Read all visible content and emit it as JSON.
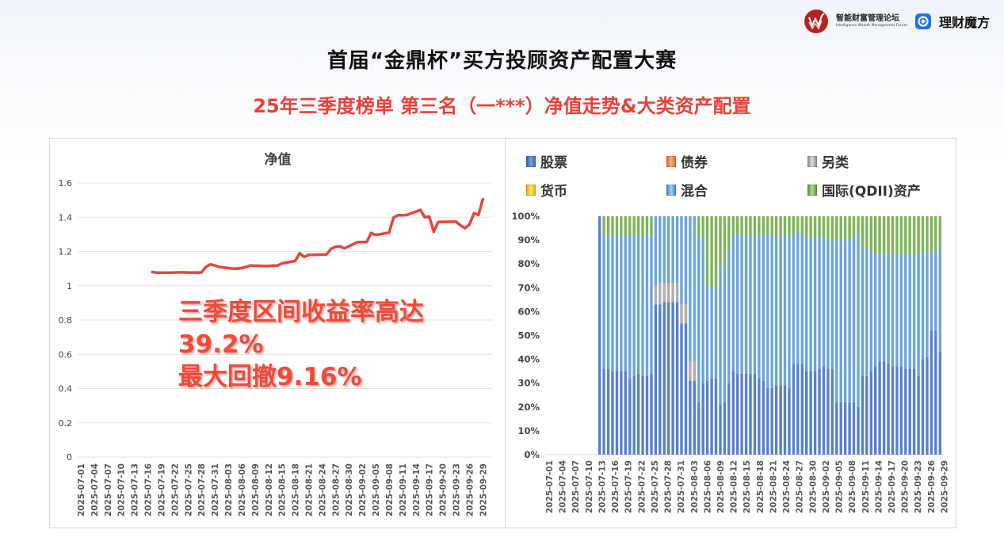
{
  "header": {
    "forum_name_cn": "智能财富管理论坛",
    "forum_name_en": "Intelligence Wealth Management Forum",
    "partner_name": "理财魔方",
    "title": "首届“金鼎杯”买方投顾资产配置大赛",
    "subtitle": "25年三季度榜单 第三名（一***）净值走势&大类资产配置"
  },
  "callout": {
    "line1": "三季度区间收益率高达",
    "line2": "39.2%",
    "line3": "最大回撤9.16%"
  },
  "colors": {
    "title_red": "#e8413a",
    "line_red": "#e8453c",
    "stock": "#4472c4",
    "bond": "#ed7d31",
    "alt": "#a5a5a5",
    "cash": "#ffc000",
    "mixed": "#5b9bd5",
    "qdii": "#70ad47"
  },
  "chart_data": [
    {
      "type": "line",
      "title": "净值",
      "xlabel": "",
      "ylabel": "",
      "ylim": [
        0,
        1.6
      ],
      "yticks": [
        "0",
        "0.2",
        "0.4",
        "0.6",
        "0.8",
        "1",
        "1.2",
        "1.4",
        "1.6"
      ],
      "grid": true,
      "xtick_labels": [
        "2025-07-01",
        "2025-07-04",
        "2025-07-07",
        "2025-07-10",
        "2025-07-13",
        "2025-07-16",
        "2025-07-19",
        "2025-07-22",
        "2025-07-25",
        "2025-07-28",
        "2025-07-31",
        "2025-08-03",
        "2025-08-06",
        "2025-08-09",
        "2025-08-12",
        "2025-08-15",
        "2025-08-18",
        "2025-08-21",
        "2025-08-24",
        "2025-08-27",
        "2025-08-30",
        "2025-09-02",
        "2025-09-05",
        "2025-09-08",
        "2025-09-11",
        "2025-09-14",
        "2025-09-17",
        "2025-09-20",
        "2025-09-23",
        "2025-09-26",
        "2025-09-29"
      ],
      "series": [
        {
          "name": "净值",
          "color": "#e8453c",
          "points": [
            [
              "2025-07-17",
              1.08
            ],
            [
              "2025-07-18",
              1.076
            ],
            [
              "2025-07-21",
              1.076
            ],
            [
              "2025-07-22",
              1.077
            ],
            [
              "2025-07-23",
              1.078
            ],
            [
              "2025-07-24",
              1.078
            ],
            [
              "2025-07-25",
              1.077
            ],
            [
              "2025-07-28",
              1.077
            ],
            [
              "2025-07-29",
              1.11
            ],
            [
              "2025-07-30",
              1.125
            ],
            [
              "2025-07-31",
              1.118
            ],
            [
              "2025-08-01",
              1.11
            ],
            [
              "2025-08-04",
              1.1
            ],
            [
              "2025-08-05",
              1.1
            ],
            [
              "2025-08-06",
              1.103
            ],
            [
              "2025-08-07",
              1.11
            ],
            [
              "2025-08-08",
              1.118
            ],
            [
              "2025-08-11",
              1.115
            ],
            [
              "2025-08-12",
              1.115
            ],
            [
              "2025-08-13",
              1.117
            ],
            [
              "2025-08-14",
              1.117
            ],
            [
              "2025-08-15",
              1.13
            ],
            [
              "2025-08-18",
              1.145
            ],
            [
              "2025-08-19",
              1.19
            ],
            [
              "2025-08-20",
              1.168
            ],
            [
              "2025-08-21",
              1.18
            ],
            [
              "2025-08-22",
              1.18
            ],
            [
              "2025-08-25",
              1.183
            ],
            [
              "2025-08-26",
              1.215
            ],
            [
              "2025-08-27",
              1.228
            ],
            [
              "2025-08-28",
              1.23
            ],
            [
              "2025-08-29",
              1.218
            ],
            [
              "2025-09-01",
              1.255
            ],
            [
              "2025-09-02",
              1.255
            ],
            [
              "2025-09-03",
              1.256
            ],
            [
              "2025-09-04",
              1.308
            ],
            [
              "2025-09-05",
              1.296
            ],
            [
              "2025-09-08",
              1.31
            ],
            [
              "2025-09-09",
              1.398
            ],
            [
              "2025-09-10",
              1.412
            ],
            [
              "2025-09-11",
              1.412
            ],
            [
              "2025-09-12",
              1.413
            ],
            [
              "2025-09-15",
              1.443
            ],
            [
              "2025-09-16",
              1.4
            ],
            [
              "2025-09-17",
              1.404
            ],
            [
              "2025-09-18",
              1.315
            ],
            [
              "2025-09-19",
              1.372
            ],
            [
              "2025-09-22",
              1.374
            ],
            [
              "2025-09-23",
              1.374
            ],
            [
              "2025-09-24",
              1.352
            ],
            [
              "2025-09-25",
              1.336
            ],
            [
              "2025-09-26",
              1.358
            ],
            [
              "2025-09-27",
              1.424
            ],
            [
              "2025-09-28",
              1.413
            ],
            [
              "2025-09-29",
              1.505
            ]
          ],
          "note": "Line spans 2025-07-17 to 2025-09-30, rising from ~1.08 to ~1.51"
        }
      ]
    },
    {
      "type": "bar",
      "stacked": true,
      "normalized": true,
      "title": "",
      "ylim": [
        0,
        100
      ],
      "yticks": [
        "0%",
        "10%",
        "20%",
        "30%",
        "40%",
        "50%",
        "60%",
        "70%",
        "80%",
        "90%",
        "100%"
      ],
      "legend": [
        "股票",
        "债券",
        "另类",
        "货币",
        "混合",
        "国际(QDII)资产"
      ],
      "legend_position": "top",
      "xtick_labels": [
        "2025-07-01",
        "2025-07-04",
        "2025-07-07",
        "2025-07-10",
        "2025-07-13",
        "2025-07-16",
        "2025-07-19",
        "2025-07-22",
        "2025-07-25",
        "2025-07-28",
        "2025-07-31",
        "2025-08-03",
        "2025-08-06",
        "2025-08-09",
        "2025-08-12",
        "2025-08-15",
        "2025-08-18",
        "2025-08-21",
        "2025-08-24",
        "2025-08-27",
        "2025-08-30",
        "2025-09-02",
        "2025-09-05",
        "2025-09-08",
        "2025-09-11",
        "2025-09-14",
        "2025-09-17",
        "2025-09-20",
        "2025-09-23",
        "2025-09-26",
        "2025-09-29"
      ],
      "bar_start": "2025-07-13",
      "bars": [
        {
          "股票": 100,
          "另类": 0,
          "混合": 0,
          "国际(QDII)资产": 0
        },
        {
          "股票": 36,
          "另类": 0,
          "混合": 56,
          "国际(QDII)资产": 8
        },
        {
          "股票": 36,
          "另类": 0,
          "混合": 56,
          "国际(QDII)资产": 8
        },
        {
          "股票": 35,
          "另类": 0,
          "混合": 57,
          "国际(QDII)资产": 8
        },
        {
          "股票": 35,
          "另类": 0,
          "混合": 57,
          "国际(QDII)资产": 8
        },
        {
          "股票": 35,
          "另类": 0,
          "混合": 57,
          "国际(QDII)资产": 8
        },
        {
          "股票": 35,
          "另类": 0,
          "混合": 57,
          "国际(QDII)资产": 8
        },
        {
          "股票": 32,
          "另类": 0,
          "混合": 60,
          "国际(QDII)资产": 8
        },
        {
          "股票": 33,
          "另类": 0,
          "混合": 59,
          "国际(QDII)资产": 8
        },
        {
          "股票": 34,
          "另类": 0,
          "混合": 58,
          "国际(QDII)资产": 8
        },
        {
          "股票": 33,
          "另类": 0,
          "混合": 59,
          "国际(QDII)资产": 8
        },
        {
          "股票": 33,
          "另类": 0,
          "混合": 59,
          "国际(QDII)资产": 8
        },
        {
          "股票": 34,
          "另类": 0,
          "混合": 58,
          "国际(QDII)资产": 8
        },
        {
          "股票": 63,
          "另类": 8,
          "混合": 29,
          "国际(QDII)资产": 0
        },
        {
          "股票": 63,
          "另类": 9,
          "混合": 28,
          "国际(QDII)资产": 0
        },
        {
          "股票": 64,
          "另类": 8,
          "混合": 28,
          "国际(QDII)资产": 0
        },
        {
          "股票": 64,
          "另类": 8,
          "混合": 28,
          "国际(QDII)资产": 0
        },
        {
          "股票": 64,
          "另类": 8,
          "混合": 28,
          "国际(QDII)资产": 0
        },
        {
          "股票": 64,
          "另类": 8,
          "混合": 28,
          "国际(QDII)资产": 0
        },
        {
          "股票": 55,
          "另类": 8,
          "混合": 37,
          "国际(QDII)资产": 0
        },
        {
          "股票": 55,
          "另类": 8,
          "混合": 37,
          "国际(QDII)资产": 0
        },
        {
          "股票": 31,
          "另类": 8,
          "混合": 61,
          "国际(QDII)资产": 0
        },
        {
          "股票": 31,
          "另类": 8,
          "混合": 61,
          "国际(QDII)资产": 0
        },
        {
          "股票": 22,
          "另类": 0,
          "混合": 69,
          "国际(QDII)资产": 9
        },
        {
          "股票": 30,
          "另类": 0,
          "混合": 61,
          "国际(QDII)资产": 9
        },
        {
          "股票": 31,
          "另类": 0,
          "混合": 40,
          "国际(QDII)资产": 29
        },
        {
          "股票": 32,
          "另类": 0,
          "混合": 38,
          "国际(QDII)资产": 30
        },
        {
          "股票": 32,
          "另类": 0,
          "混合": 38,
          "国际(QDII)资产": 30
        },
        {
          "股票": 21,
          "另类": 0,
          "混合": 59,
          "国际(QDII)资产": 20
        },
        {
          "股票": 22,
          "另类": 0,
          "混合": 57,
          "国际(QDII)资产": 21
        },
        {
          "股票": 30,
          "另类": 0,
          "混合": 56,
          "国际(QDII)资产": 14
        },
        {
          "股票": 35,
          "另类": 0,
          "混合": 57,
          "国际(QDII)资产": 8
        },
        {
          "股票": 34,
          "另类": 0,
          "混合": 58,
          "国际(QDII)资产": 8
        },
        {
          "股票": 34,
          "另类": 0,
          "混合": 58,
          "国际(QDII)资产": 8
        },
        {
          "股票": 34,
          "另类": 0,
          "混合": 58,
          "国际(QDII)资产": 8
        },
        {
          "股票": 34,
          "另类": 0,
          "混合": 58,
          "国际(QDII)资产": 8
        },
        {
          "股票": 34,
          "另类": 0,
          "混合": 58,
          "国际(QDII)资产": 8
        },
        {
          "股票": 32,
          "另类": 0,
          "混合": 60,
          "国际(QDII)资产": 8
        },
        {
          "股票": 31,
          "另类": 0,
          "混合": 61,
          "国际(QDII)资产": 8
        },
        {
          "股票": 28,
          "另类": 0,
          "混合": 64,
          "国际(QDII)资产": 8
        },
        {
          "股票": 28,
          "另类": 0,
          "混合": 64,
          "国际(QDII)资产": 8
        },
        {
          "股票": 29,
          "另类": 0,
          "混合": 63,
          "国际(QDII)资产": 8
        },
        {
          "股票": 29,
          "另类": 0,
          "混合": 63,
          "国际(QDII)资产": 8
        },
        {
          "股票": 29,
          "另类": 0,
          "混合": 63,
          "国际(QDII)资产": 8
        },
        {
          "股票": 28,
          "另类": 0,
          "混合": 63,
          "国际(QDII)资产": 9
        },
        {
          "股票": 38,
          "另类": 0,
          "混合": 55,
          "国际(QDII)资产": 7
        },
        {
          "股票": 38,
          "另类": 0,
          "混合": 55,
          "国际(QDII)资产": 7
        },
        {
          "股票": 38,
          "另类": 0,
          "混合": 55,
          "国际(QDII)资产": 7
        },
        {
          "股票": 35,
          "另类": 0,
          "混合": 56,
          "国际(QDII)资产": 9
        },
        {
          "股票": 35,
          "另类": 0,
          "混合": 56,
          "国际(QDII)资产": 9
        },
        {
          "股票": 35,
          "另类": 0,
          "混合": 56,
          "国际(QDII)资产": 9
        },
        {
          "股票": 36,
          "另类": 0,
          "混合": 55,
          "国际(QDII)资产": 9
        },
        {
          "股票": 37,
          "另类": 0,
          "混合": 54,
          "国际(QDII)资产": 9
        },
        {
          "股票": 36,
          "另类": 0,
          "混合": 54,
          "国际(QDII)资产": 10
        },
        {
          "股票": 36,
          "另类": 0,
          "混合": 54,
          "国际(QDII)资产": 10
        },
        {
          "股票": 22,
          "另类": 0,
          "混合": 68,
          "国际(QDII)资产": 10
        },
        {
          "股票": 22,
          "另类": 0,
          "混合": 68,
          "国际(QDII)资产": 10
        },
        {
          "股票": 22,
          "另类": 0,
          "混合": 68,
          "国际(QDII)资产": 10
        },
        {
          "股票": 22,
          "另类": 0,
          "混合": 68,
          "国际(QDII)资产": 10
        },
        {
          "股票": 22,
          "另类": 0,
          "混合": 69,
          "国际(QDII)资产": 9
        },
        {
          "股票": 20,
          "另类": 0,
          "混合": 72,
          "国际(QDII)资产": 8
        },
        {
          "股票": 33,
          "另类": 0,
          "混合": 54,
          "国际(QDII)资产": 13
        },
        {
          "股票": 33,
          "另类": 0,
          "混合": 54,
          "国际(QDII)资产": 13
        },
        {
          "股票": 35,
          "另类": 0,
          "混合": 50,
          "国际(QDII)资产": 15
        },
        {
          "股票": 37,
          "另类": 0,
          "混合": 47,
          "国际(QDII)资产": 16
        },
        {
          "股票": 39,
          "另类": 0,
          "混合": 45,
          "国际(QDII)资产": 16
        },
        {
          "股票": 39,
          "另类": 0,
          "混合": 45,
          "国际(QDII)资产": 16
        },
        {
          "股票": 38,
          "另类": 0,
          "混合": 46,
          "国际(QDII)资产": 16
        },
        {
          "股票": 37,
          "另类": 0,
          "混合": 47,
          "国际(QDII)资产": 16
        },
        {
          "股票": 37,
          "另类": 0,
          "混合": 47,
          "国际(QDII)资产": 16
        },
        {
          "股票": 37,
          "另类": 0,
          "混合": 47,
          "国际(QDII)资产": 16
        },
        {
          "股票": 36,
          "另类": 0,
          "混合": 48,
          "国际(QDII)资产": 16
        },
        {
          "股票": 36,
          "另类": 0,
          "混合": 48,
          "国际(QDII)资产": 16
        },
        {
          "股票": 36,
          "另类": 0,
          "混合": 48,
          "国际(QDII)资产": 16
        },
        {
          "股票": 33,
          "另类": 0,
          "混合": 51,
          "国际(QDII)资产": 16
        },
        {
          "股票": 40,
          "另类": 0,
          "混合": 45,
          "国际(QDII)资产": 15
        },
        {
          "股票": 41,
          "另类": 0,
          "混合": 44,
          "国际(QDII)资产": 15
        },
        {
          "股票": 52,
          "另类": 0,
          "混合": 33,
          "国际(QDII)资产": 15
        },
        {
          "股票": 52,
          "另类": 0,
          "混合": 33,
          "国际(QDII)资产": 15
        },
        {
          "股票": 43,
          "另类": 0,
          "混合": 44,
          "国际(QDII)资产": 13
        }
      ]
    }
  ]
}
